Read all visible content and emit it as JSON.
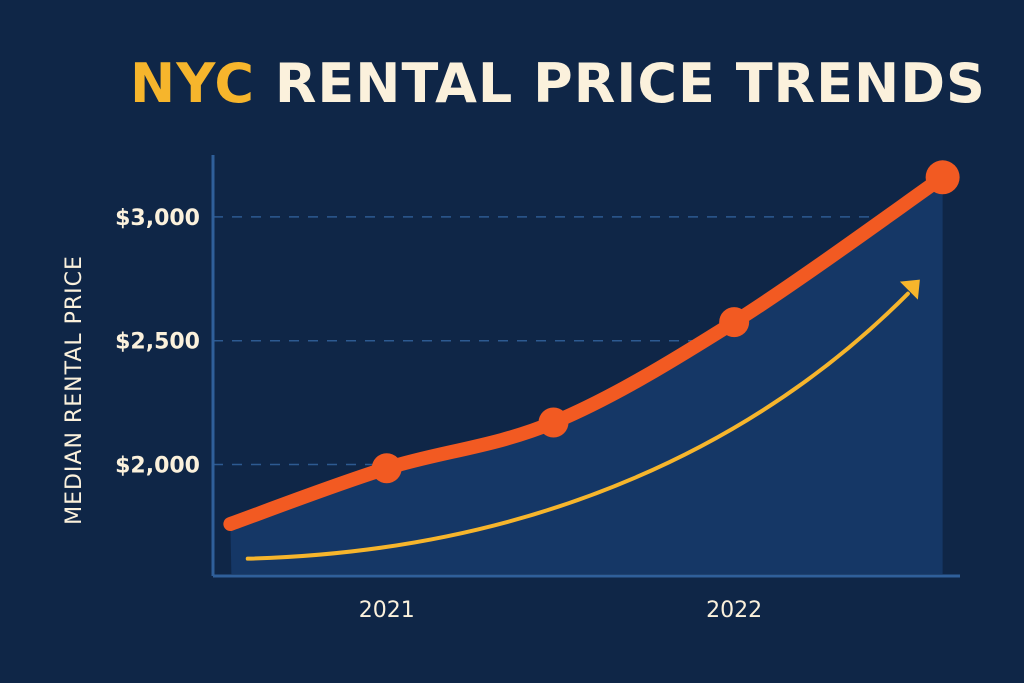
{
  "title": {
    "accent": "NYC",
    "rest": "RENTAL PRICE TRENDS"
  },
  "chart_data": {
    "type": "line",
    "title": "NYC RENTAL PRICE TRENDS",
    "xlabel": "",
    "ylabel": "MEDIAN RENTAL PRICE",
    "x_ticks": [
      {
        "label": "2021",
        "x": 2021.0
      },
      {
        "label": "2022",
        "x": 2022.0
      }
    ],
    "y_ticks": [
      {
        "label": "$2,000",
        "value": 2000
      },
      {
        "label": "$2,500",
        "value": 2500
      },
      {
        "label": "$3,000",
        "value": 3000
      }
    ],
    "xlim": [
      2020.5,
      2022.65
    ],
    "ylim": [
      1550,
      3250
    ],
    "grid": "horizontal dashed",
    "series": [
      {
        "values": [
          {
            "x": 2020.55,
            "y": 1760
          },
          {
            "x": 2021.0,
            "y": 1985
          },
          {
            "x": 2021.48,
            "y": 2170
          },
          {
            "x": 2022.0,
            "y": 2575
          },
          {
            "x": 2022.6,
            "y": 3160
          }
        ],
        "color": "#f25a22"
      }
    ],
    "trend_arrow": {
      "points": [
        {
          "x": 2020.6,
          "y": 1620
        },
        {
          "x": 2022.5,
          "y": 2690
        }
      ],
      "color": "#f6b52c"
    },
    "colors": {
      "background": "#0f2647",
      "area": "#153766",
      "axis": "#2f5f9a",
      "text": "#fbf1dc"
    }
  }
}
